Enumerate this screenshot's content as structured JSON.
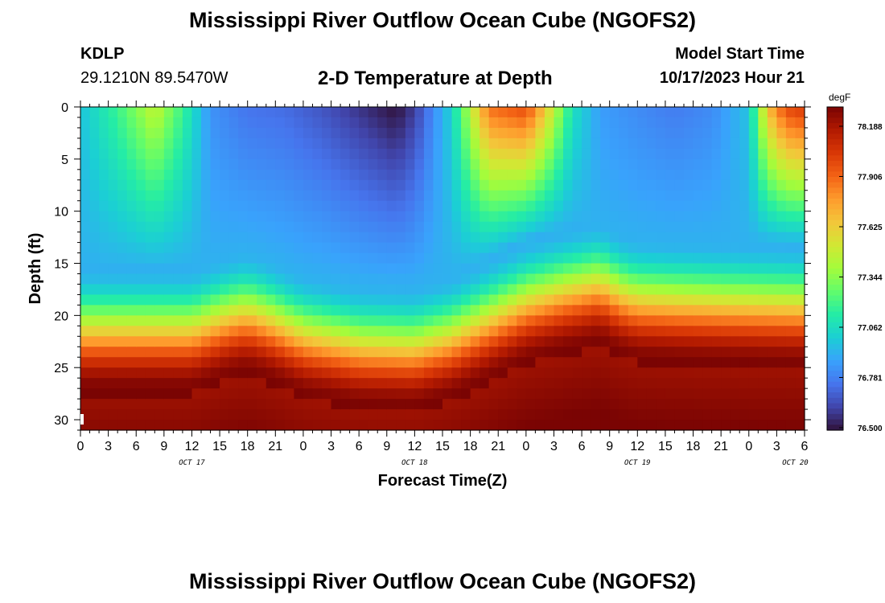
{
  "header": {
    "title": "Mississippi River Outflow Ocean Cube (NGOFS2)",
    "station_id": "KDLP",
    "station_coords": "29.1210N  89.5470W",
    "subtitle": "2-D Temperature at Depth",
    "model_start_label": "Model Start Time",
    "model_start_value": "10/17/2023 Hour 21"
  },
  "footer": {
    "title": "Mississippi River Outflow Ocean Cube (NGOFS2)"
  },
  "chart_data": {
    "type": "heatmap",
    "title": "2-D Temperature at Depth",
    "xlabel": "Forecast Time(Z)",
    "ylabel": "Depth (ft)",
    "x_tick_labels": [
      "0",
      "3",
      "6",
      "9",
      "12",
      "15",
      "18",
      "21",
      "0",
      "3",
      "6",
      "9",
      "12",
      "15",
      "18",
      "21",
      "0",
      "3",
      "6",
      "9",
      "12",
      "15",
      "18",
      "21",
      "0",
      "3",
      "6"
    ],
    "x_day_labels": [
      {
        "label": "OCT 17",
        "hour_index": 12
      },
      {
        "label": "OCT 18",
        "hour_index": 36
      },
      {
        "label": "OCT 19",
        "hour_index": 60
      },
      {
        "label": "OCT 20",
        "hour_index": 77
      }
    ],
    "xlim_hours": [
      0,
      78
    ],
    "y_ticks": [
      0,
      5,
      10,
      15,
      20,
      25,
      30
    ],
    "ylim": [
      0,
      31
    ],
    "y_inverted": true,
    "colorbar": {
      "unit": "degF",
      "tick_labels": [
        "78.188",
        "77.906",
        "77.625",
        "77.344",
        "77.062",
        "76.781",
        "76.500"
      ],
      "min": 76.5,
      "max": 78.188,
      "colors": [
        "#30123b",
        "#4145ab",
        "#4675ed",
        "#39a2fc",
        "#1bcfd4",
        "#24eca6",
        "#61fc6c",
        "#a4fc3b",
        "#d1e834",
        "#f3c63a",
        "#fe9b2d",
        "#f36315",
        "#d93806",
        "#b11901",
        "#7a0403"
      ]
    },
    "surface_profile": {
      "hours": [
        0,
        4,
        8,
        11,
        14,
        18,
        22,
        26,
        30,
        34,
        36,
        40,
        44,
        48,
        50,
        53,
        56,
        60,
        64,
        68,
        72,
        74,
        76,
        78
      ],
      "temperature_degF": [
        76.95,
        77.15,
        77.42,
        77.15,
        76.82,
        76.74,
        76.72,
        76.66,
        76.58,
        76.5,
        76.6,
        77.0,
        77.8,
        77.9,
        77.6,
        77.05,
        76.85,
        76.8,
        76.76,
        76.8,
        76.95,
        77.6,
        77.9,
        77.95
      ]
    },
    "thermocline_profile": {
      "hours": [
        0,
        6,
        12,
        16,
        18,
        20,
        24,
        30,
        36,
        40,
        44,
        48,
        52,
        56,
        58,
        60,
        64,
        70,
        78
      ],
      "interface_depth_ft": [
        21.5,
        21.5,
        21.5,
        20.2,
        19.8,
        20.4,
        22.0,
        23.0,
        23.2,
        22.2,
        20.5,
        18.8,
        17.8,
        17.0,
        18.0,
        18.6,
        18.8,
        19.0,
        19.2
      ]
    },
    "bottom_temperature_degF": 78.188
  }
}
